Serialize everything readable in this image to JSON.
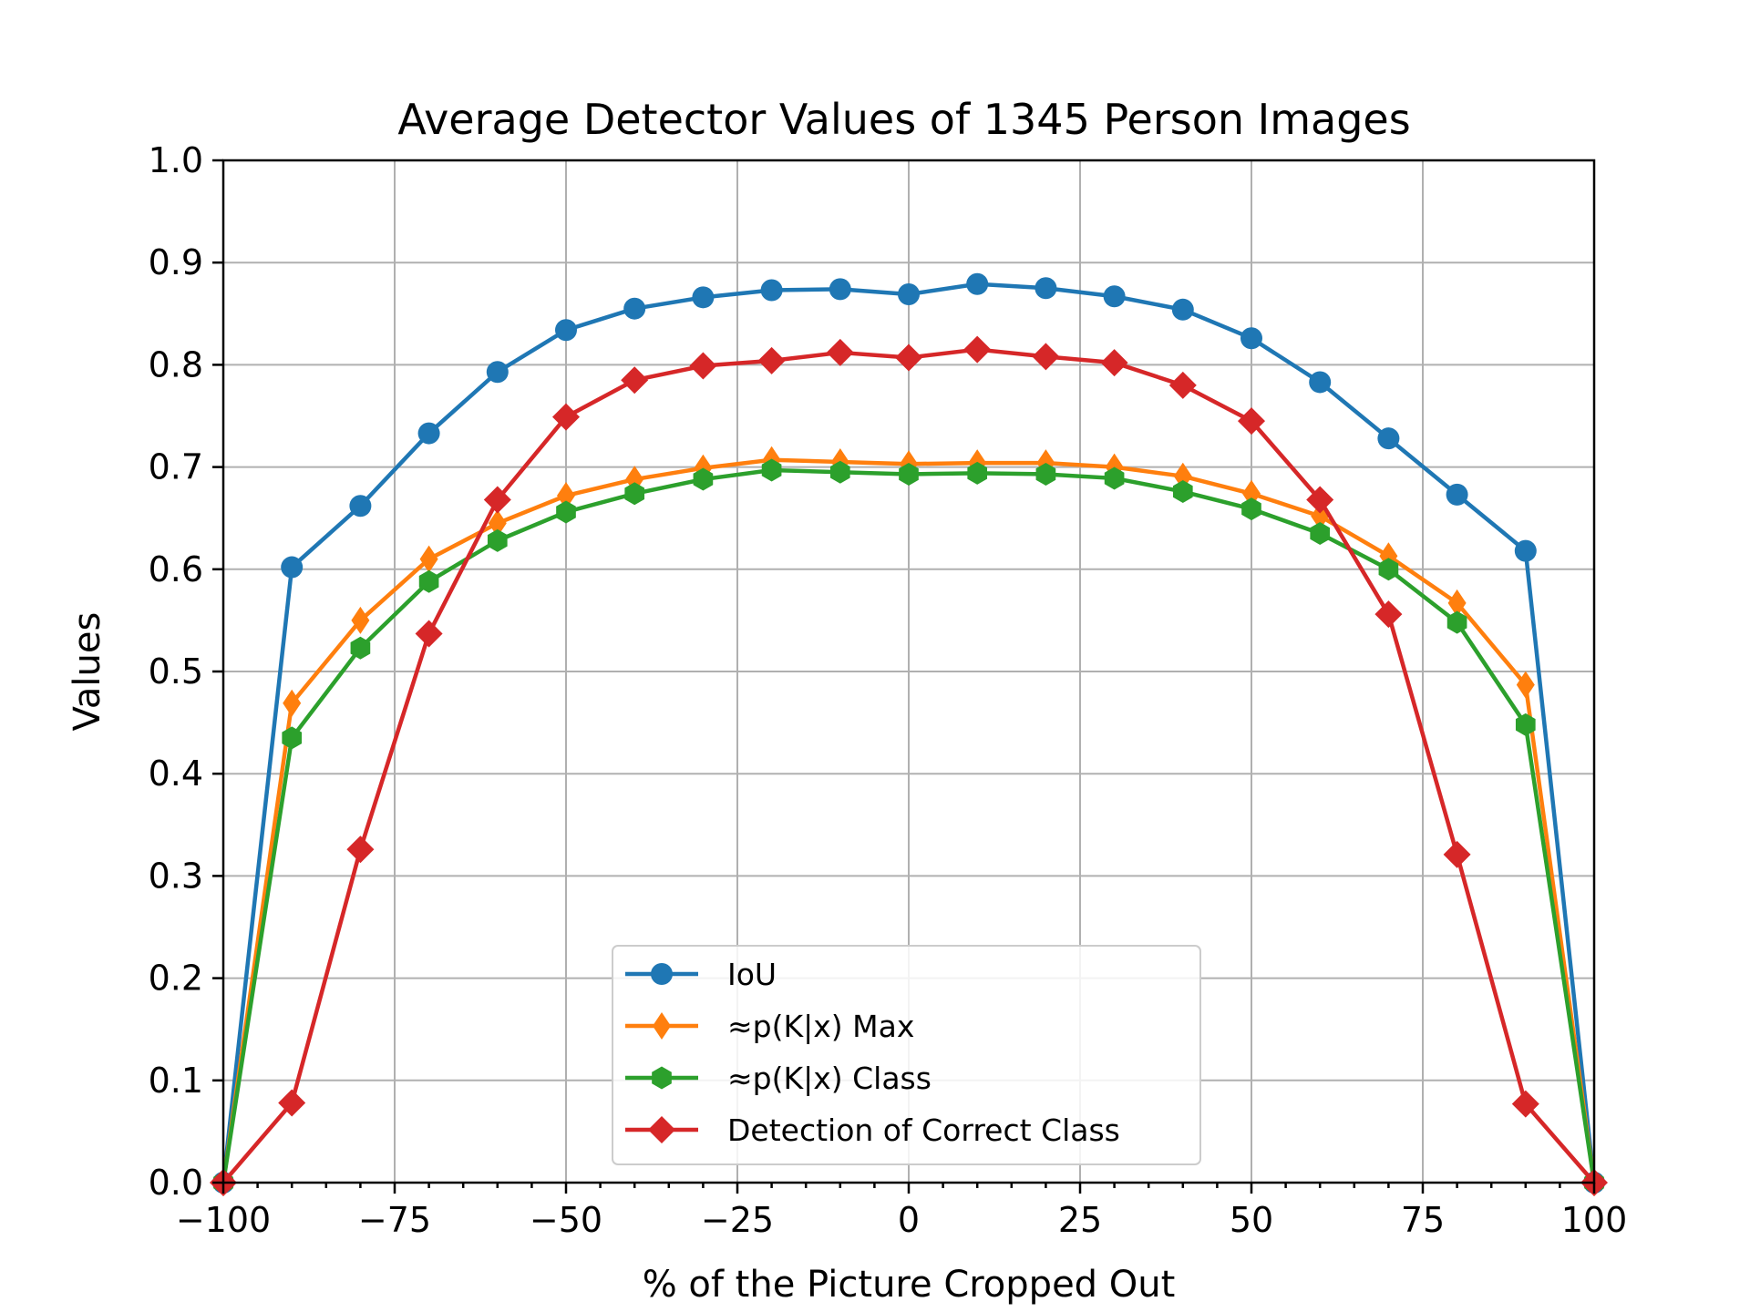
{
  "chart_data": {
    "type": "line",
    "title": "Average Detector Values of 1345 Person Images",
    "xlabel": "% of the Picture Cropped Out",
    "ylabel": "Values",
    "xlim": [
      -100,
      100
    ],
    "ylim": [
      0.0,
      1.0
    ],
    "x_ticks": [
      -100,
      -75,
      -50,
      -25,
      0,
      25,
      50,
      75,
      100
    ],
    "x_tick_labels": [
      "−100",
      "−75",
      "−50",
      "−25",
      "0",
      "25",
      "50",
      "75",
      "100"
    ],
    "y_ticks": [
      0.0,
      0.1,
      0.2,
      0.3,
      0.4,
      0.5,
      0.6,
      0.7,
      0.8,
      0.9,
      1.0
    ],
    "y_tick_labels": [
      "0.0",
      "0.1",
      "0.2",
      "0.3",
      "0.4",
      "0.5",
      "0.6",
      "0.7",
      "0.8",
      "0.9",
      "1.0"
    ],
    "grid": true,
    "legend_position": "lower-center",
    "x": [
      -100,
      -90,
      -80,
      -70,
      -60,
      -50,
      -40,
      -30,
      -20,
      -10,
      0,
      10,
      20,
      30,
      40,
      50,
      60,
      70,
      80,
      90,
      100
    ],
    "series": [
      {
        "name": "IoU",
        "color": "#1f77b4",
        "marker": "circle",
        "values": [
          0.0,
          0.602,
          0.662,
          0.733,
          0.793,
          0.834,
          0.855,
          0.866,
          0.873,
          0.874,
          0.869,
          0.879,
          0.875,
          0.867,
          0.854,
          0.826,
          0.783,
          0.728,
          0.673,
          0.618,
          0.0
        ]
      },
      {
        "name": "≈p(K|x) Max",
        "color": "#ff7f0e",
        "marker": "thin-diamond",
        "values": [
          0.0,
          0.469,
          0.55,
          0.61,
          0.645,
          0.672,
          0.688,
          0.699,
          0.707,
          0.705,
          0.703,
          0.704,
          0.704,
          0.7,
          0.691,
          0.674,
          0.652,
          0.613,
          0.567,
          0.487,
          0.0
        ]
      },
      {
        "name": "≈p(K|x) Class",
        "color": "#2ca02c",
        "marker": "hexagon",
        "values": [
          0.0,
          0.435,
          0.523,
          0.588,
          0.628,
          0.656,
          0.674,
          0.688,
          0.697,
          0.695,
          0.693,
          0.694,
          0.693,
          0.689,
          0.676,
          0.659,
          0.635,
          0.6,
          0.548,
          0.448,
          0.0
        ]
      },
      {
        "name": "Detection of Correct Class",
        "color": "#d62728",
        "marker": "diamond",
        "values": [
          0.0,
          0.078,
          0.326,
          0.537,
          0.668,
          0.749,
          0.785,
          0.799,
          0.804,
          0.812,
          0.807,
          0.815,
          0.808,
          0.802,
          0.78,
          0.745,
          0.668,
          0.556,
          0.321,
          0.077,
          0.0
        ]
      }
    ]
  }
}
